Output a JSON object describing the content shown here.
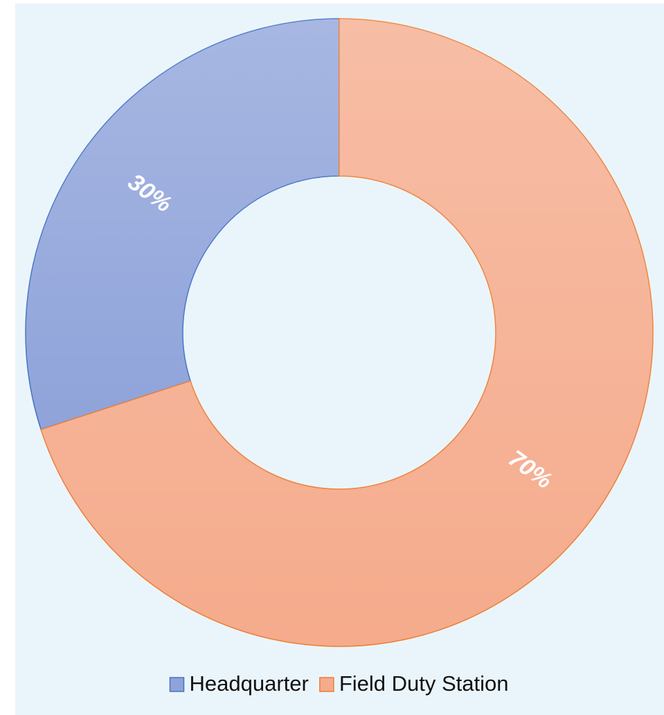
{
  "chart_data": {
    "type": "donut",
    "categories": [
      "Headquarter",
      "Field Duty Station"
    ],
    "values": [
      30,
      70
    ],
    "value_labels": [
      "30%",
      "70%"
    ],
    "colors": [
      "#8fa3da",
      "#f5ab8c"
    ],
    "edge_colors": [
      "#4472c4",
      "#ed7d31"
    ],
    "legend": "bottom"
  }
}
